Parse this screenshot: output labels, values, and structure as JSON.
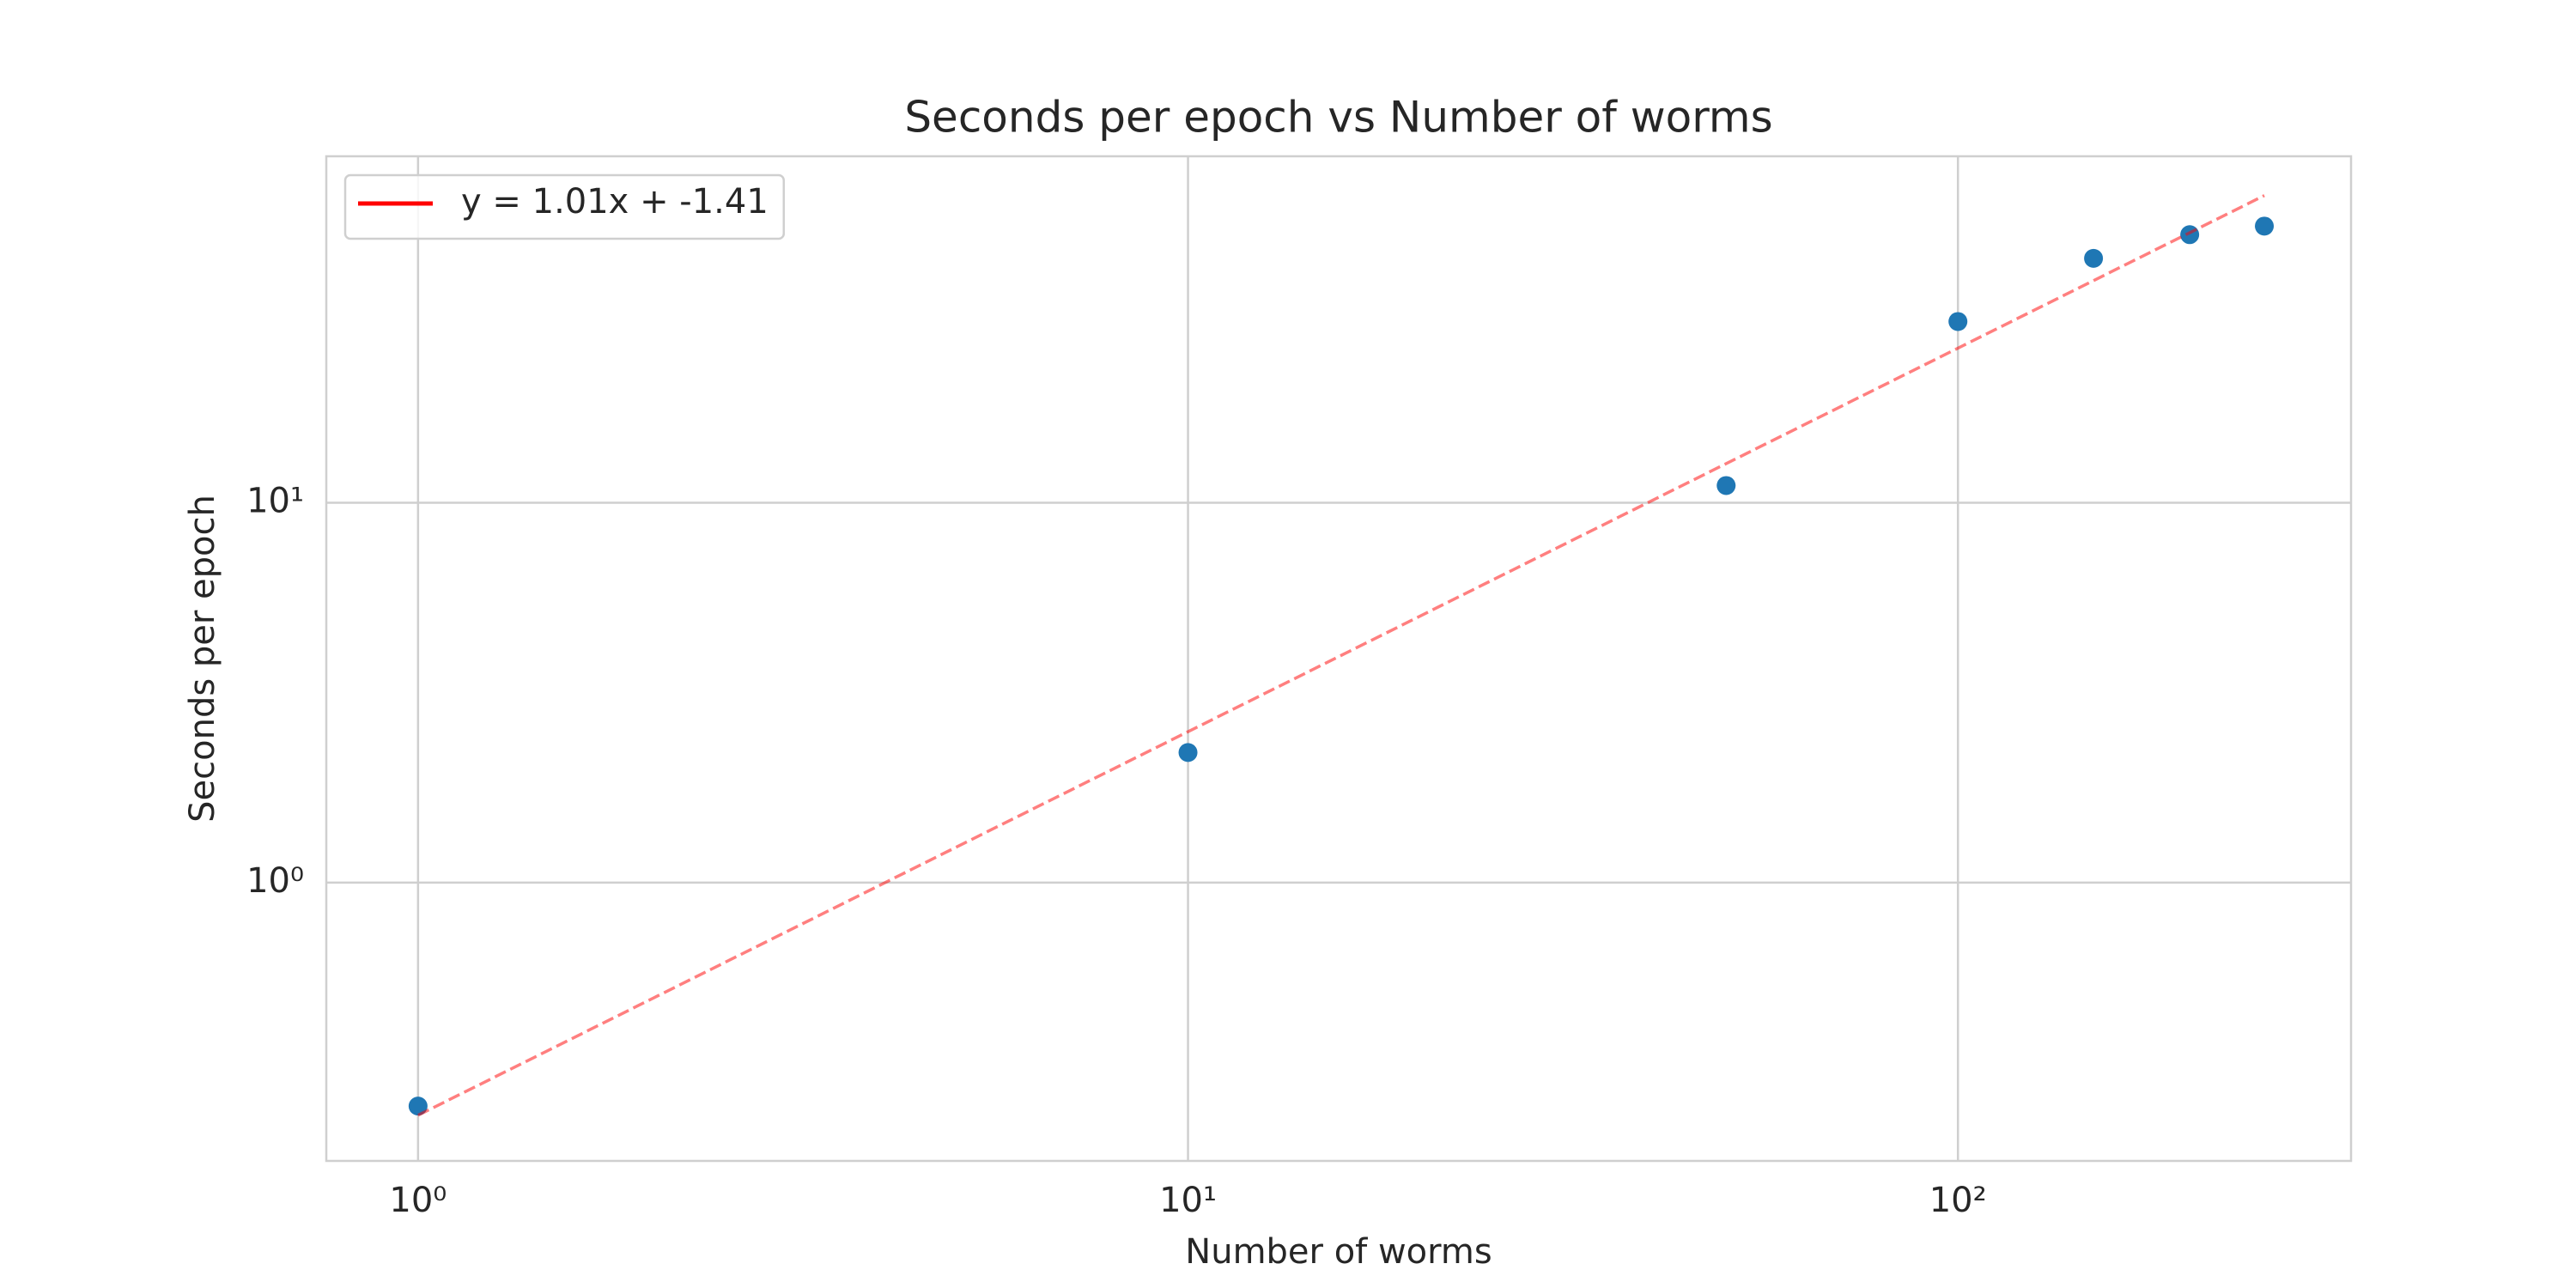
{
  "chart_data": {
    "type": "scatter",
    "title": "Seconds per epoch vs Number of worms",
    "x_label": "Number of worms",
    "y_label": "Seconds per epoch",
    "xscale": "log",
    "yscale": "log",
    "xlim": [
      0.76,
      324
    ],
    "ylim": [
      0.185,
      81.7
    ],
    "xticks": [
      {
        "value": 1,
        "label": "10⁰"
      },
      {
        "value": 10,
        "label": "10¹"
      },
      {
        "value": 100,
        "label": "10²"
      }
    ],
    "yticks": [
      {
        "value": 1,
        "label": "10⁰"
      },
      {
        "value": 10,
        "label": "10¹"
      }
    ],
    "grid": true,
    "legend": "upper left",
    "series": [
      {
        "type": "scatter",
        "color": "#1f77b4",
        "x": [
          1,
          10,
          50,
          100,
          150,
          200,
          250
        ],
        "values": [
          0.258,
          2.2,
          11.1,
          30,
          44,
          50.8,
          53.5
        ]
      },
      {
        "type": "line",
        "name": "y = 1.01x + -1.41",
        "color": "#ff0000",
        "linestyle": "dashed",
        "alpha": 0.5,
        "x": [
          1,
          250
        ],
        "values": [
          0.244,
          64.4
        ]
      }
    ]
  }
}
